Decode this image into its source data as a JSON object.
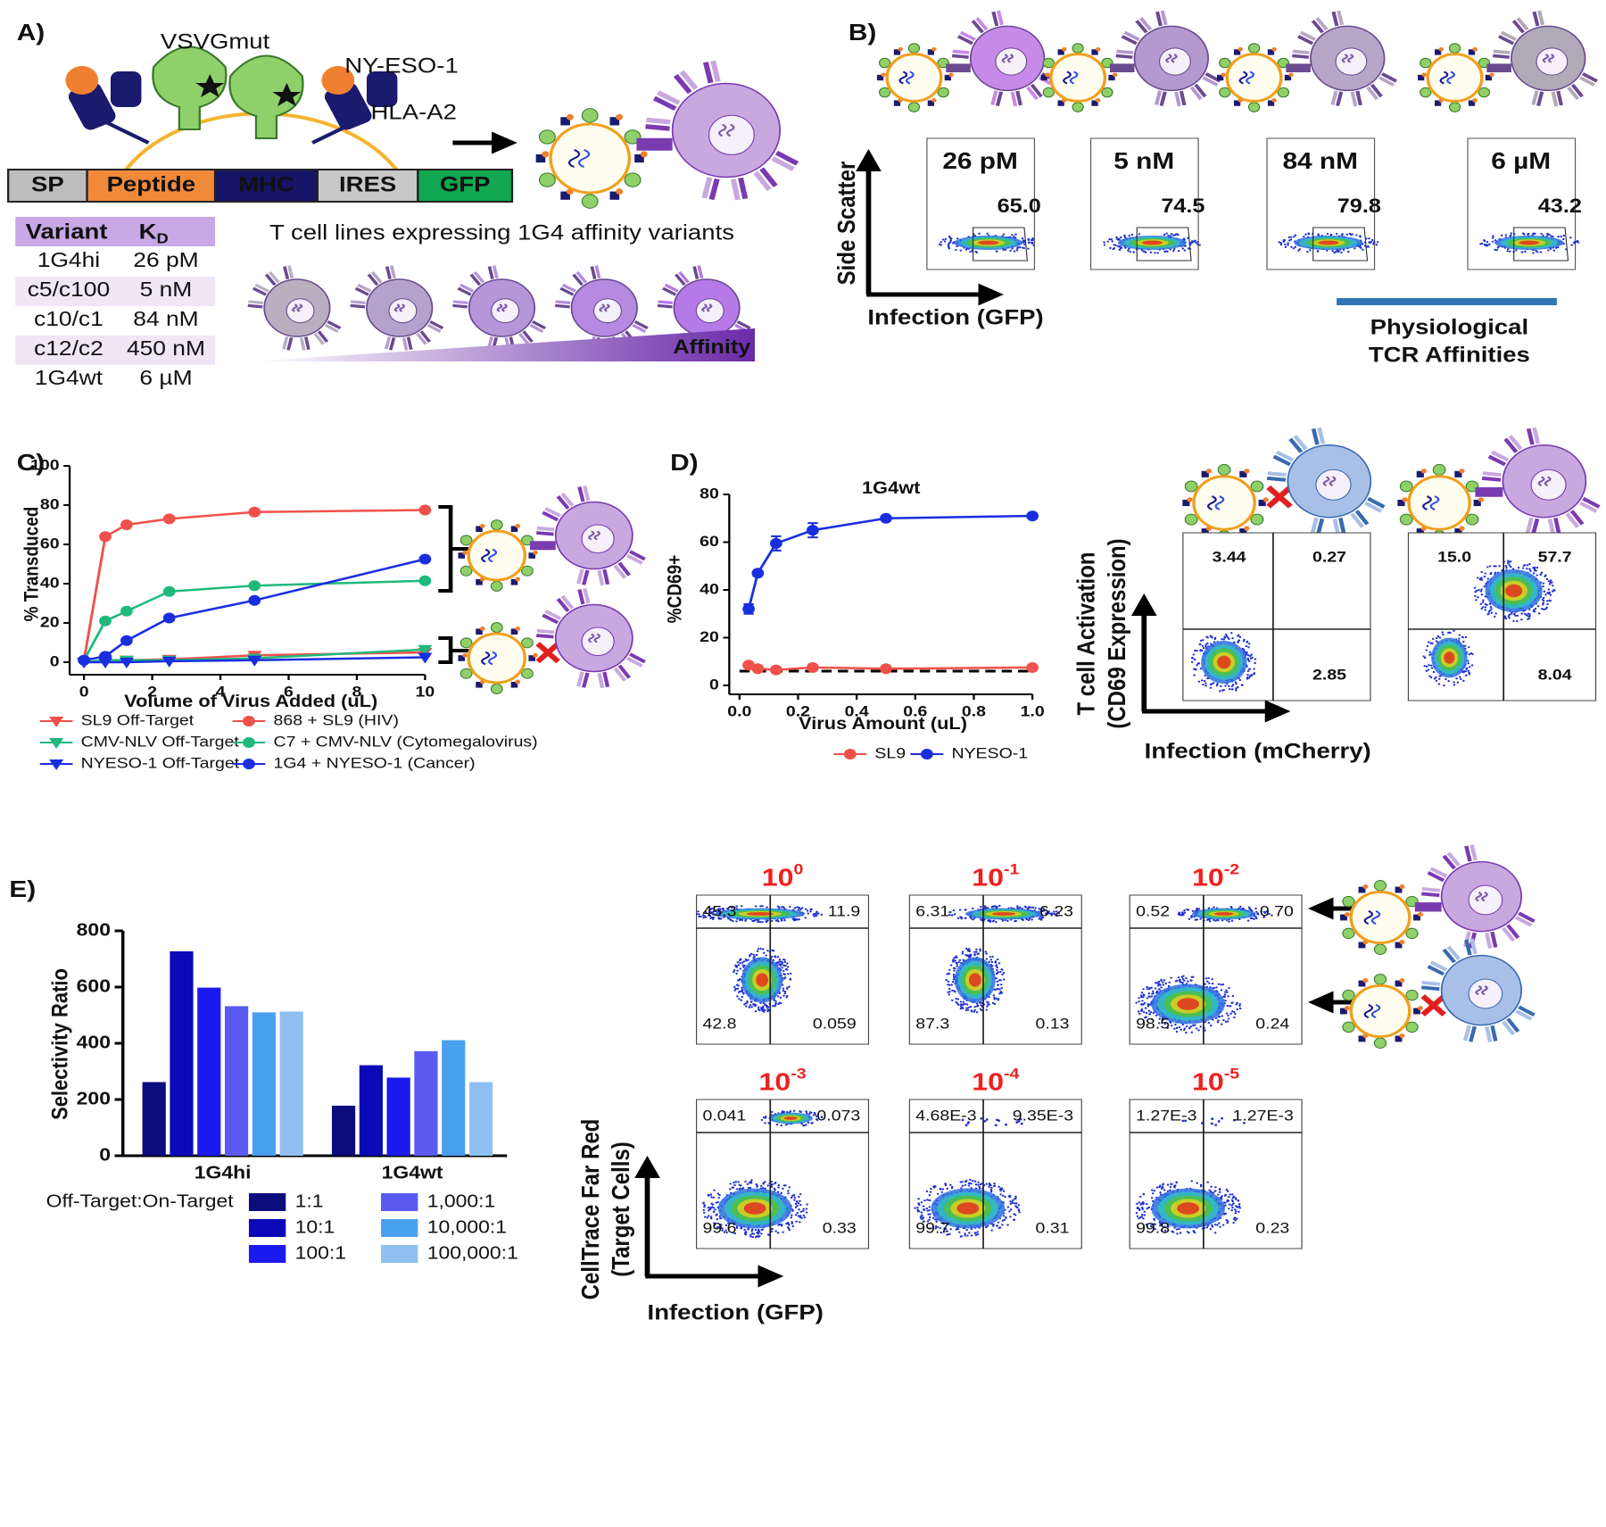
{
  "panel_a": {
    "label": "A)",
    "protein_labels": [
      "VSVGmut",
      "NY-ESO-1",
      "HLA-A2"
    ],
    "construct": [
      "SP",
      "Peptide",
      "MHC",
      "IRES",
      "GFP"
    ],
    "table": {
      "header": {
        "variant": "Variant",
        "kd": "K",
        "kd_sub": "D"
      },
      "rows": [
        [
          "1G4hi",
          "26 pM"
        ],
        [
          "c5/c100",
          "5 nM"
        ],
        [
          "c10/c1",
          "84 nM"
        ],
        [
          "c12/c2",
          "450 nM"
        ],
        [
          "1G4wt",
          "6 µM"
        ]
      ]
    },
    "tcell_caption": "T cell lines expressing 1G4 affinity variants",
    "gradient_label": "Affinity"
  },
  "panel_b": {
    "label": "B)",
    "y_axis": "Side Scatter",
    "x_axis": "Infection (GFP)",
    "plots": [
      {
        "affinity": "26 pM",
        "gate": "65.0"
      },
      {
        "affinity": "5 nM",
        "gate": "74.5"
      },
      {
        "affinity": "84 nM",
        "gate": "79.8"
      },
      {
        "affinity": "6 µM",
        "gate": "43.2"
      }
    ],
    "bracket_label": [
      "Physiological",
      "TCR Affinities"
    ]
  },
  "chart_data": [
    {
      "type": "line",
      "label": "C)",
      "xlabel": "Volume of Virus Added (uL)",
      "ylabel": "% Transduced",
      "x": [
        0,
        0.625,
        1.25,
        2.5,
        5,
        10
      ],
      "xlim": [
        0,
        10
      ],
      "xticks": [
        0,
        2,
        4,
        6,
        8,
        10
      ],
      "ylim": [
        0,
        100
      ],
      "yticks": [
        0,
        20,
        40,
        60,
        80,
        100
      ],
      "series": [
        {
          "name": "SL9 Off-Target",
          "color": "#f0504a",
          "marker": "triangle-down",
          "values": [
            0,
            1,
            1,
            1.5,
            3.5,
            5
          ]
        },
        {
          "name": "CMV-NLV Off-Target",
          "color": "#1fb97a",
          "marker": "triangle-down",
          "values": [
            0,
            1,
            1,
            1,
            2,
            6.5
          ]
        },
        {
          "name": "NYESO-1 Off-Target",
          "color": "#1a2ee0",
          "marker": "triangle-down",
          "values": [
            0,
            0,
            0,
            0.5,
            1,
            2.5
          ]
        },
        {
          "name": "868 + SL9 (HIV)",
          "color": "#f0504a",
          "marker": "circle",
          "values": [
            1,
            64,
            70,
            73,
            76.5,
            77.5
          ]
        },
        {
          "name": "C7 + CMV-NLV (Cytomegalovirus)",
          "color": "#1fb97a",
          "marker": "circle",
          "values": [
            1,
            21,
            26,
            36,
            39,
            41.5
          ]
        },
        {
          "name": "1G4 + NYESO-1 (Cancer)",
          "color": "#1a2ee0",
          "marker": "circle",
          "values": [
            1,
            3,
            11,
            22.5,
            31.5,
            52.5
          ]
        }
      ]
    },
    {
      "type": "line",
      "label": "D)",
      "title": "1G4wt",
      "xlabel": "Virus Amount (uL)",
      "ylabel": "%CD69+",
      "x": [
        0.03125,
        0.0625,
        0.125,
        0.25,
        0.5,
        1.0
      ],
      "xlim": [
        0,
        1
      ],
      "xticks": [
        {
          "value": 0,
          "label": "0.0"
        },
        0.2,
        0.4,
        0.6,
        0.8,
        {
          "value": 1,
          "label": "1.0"
        }
      ],
      "ylim": [
        0,
        80
      ],
      "yticks": [
        0,
        20,
        40,
        60,
        80
      ],
      "reference_line": 6,
      "series": [
        {
          "name": "SL9",
          "color": "#f0504a",
          "marker": "circle",
          "values": [
            8.5,
            7,
            6.5,
            7.5,
            7,
            7.5
          ]
        },
        {
          "name": "NYESO-1",
          "color": "#1a2ee0",
          "marker": "circle",
          "values": [
            32,
            47,
            59.5,
            65,
            70,
            71
          ],
          "errors": [
            2,
            1,
            3,
            3,
            0.5,
            0.5
          ]
        }
      ]
    },
    {
      "type": "bar",
      "label": "E)",
      "ylabel": "Selectivity Ratio",
      "legend_title": "Off-Target:On-Target",
      "categories": [
        "1G4hi",
        "1G4wt"
      ],
      "ylim": [
        0,
        800
      ],
      "yticks": [
        0,
        200,
        400,
        600,
        800
      ],
      "series": [
        {
          "name": "1:1",
          "color": "#0c0c7c",
          "values": [
            262,
            178
          ]
        },
        {
          "name": "10:1",
          "color": "#0a0ab8",
          "values": [
            727,
            322
          ]
        },
        {
          "name": "100:1",
          "color": "#1a1aee",
          "values": [
            598,
            278
          ]
        },
        {
          "name": "1,000:1",
          "color": "#5a5af0",
          "values": [
            532,
            372
          ]
        },
        {
          "name": "10,000:1",
          "color": "#4aa0f0",
          "values": [
            510,
            411
          ]
        },
        {
          "name": "100,000:1",
          "color": "#90c0f2",
          "values": [
            513,
            262
          ]
        }
      ]
    }
  ],
  "panel_d_flow": {
    "y_axis": [
      "T cell Activation",
      "(CD69 Expression)"
    ],
    "x_axis": "Infection (mCherry)",
    "plots": [
      {
        "upper_left": "3.44",
        "upper_right": "0.27",
        "lower_right": "2.85"
      },
      {
        "upper_left": "15.0",
        "upper_right": "57.7",
        "lower_right": "8.04"
      }
    ]
  },
  "panel_e_flow": {
    "y_axis": [
      "CellTrace Far Red",
      "(Target Cells)"
    ],
    "x_axis": "Infection (GFP)",
    "plots": [
      {
        "dilution": {
          "base": "10",
          "exp": "0"
        },
        "upper_left": "45.3",
        "upper_right": "11.9",
        "lower_left": "42.8",
        "lower_right": "0.059"
      },
      {
        "dilution": {
          "base": "10",
          "exp": "-1"
        },
        "upper_left": "6.31",
        "upper_right": "6.23",
        "lower_left": "87.3",
        "lower_right": "0.13"
      },
      {
        "dilution": {
          "base": "10",
          "exp": "-2"
        },
        "upper_left": "0.52",
        "upper_right": "0.70",
        "lower_left": "98.5",
        "lower_right": "0.24"
      },
      {
        "dilution": {
          "base": "10",
          "exp": "-3"
        },
        "upper_left": "0.041",
        "upper_right": "0.073",
        "lower_left": "99.6",
        "lower_right": "0.33"
      },
      {
        "dilution": {
          "base": "10",
          "exp": "-4"
        },
        "upper_left": "4.68E-3",
        "upper_right": "9.35E-3",
        "lower_left": "99.7",
        "lower_right": "0.31"
      },
      {
        "dilution": {
          "base": "10",
          "exp": "-5"
        },
        "upper_left": "1.27E-3",
        "upper_right": "1.27E-3",
        "lower_left": "99.8",
        "lower_right": "0.23"
      }
    ]
  }
}
